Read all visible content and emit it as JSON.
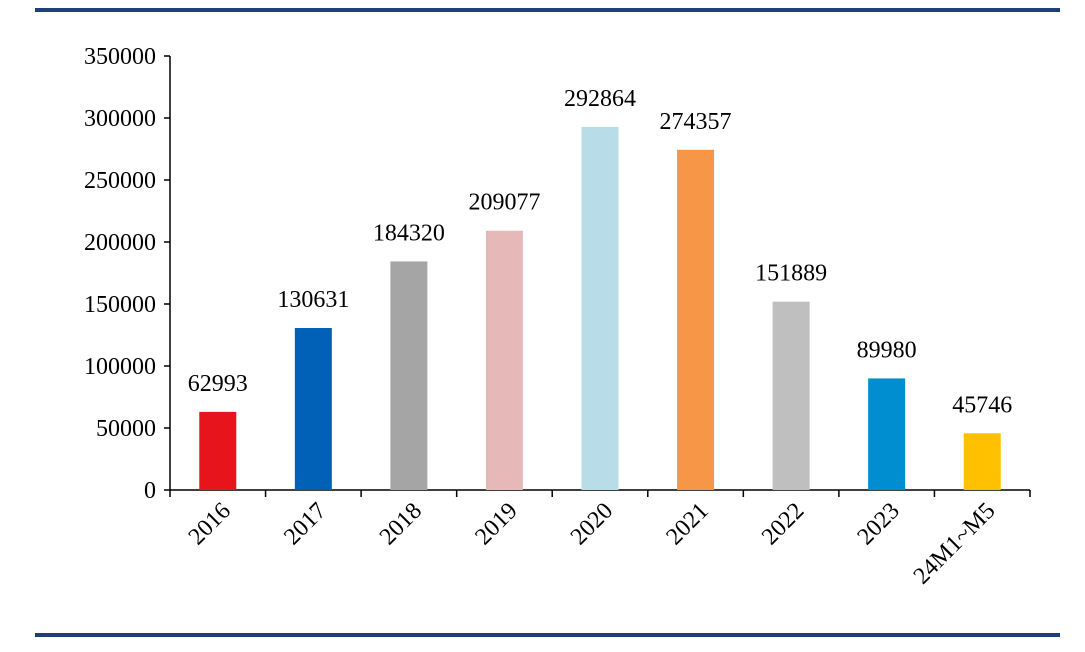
{
  "colors": {
    "rule": "#1f3f7a",
    "axis": "#000000"
  },
  "chart_data": {
    "type": "bar",
    "title": "",
    "xlabel": "",
    "ylabel": "",
    "ylim": [
      0,
      350000
    ],
    "y_ticks": [
      0,
      50000,
      100000,
      150000,
      200000,
      250000,
      300000,
      350000
    ],
    "y_tick_labels": [
      "0",
      "50000",
      "100000",
      "150000",
      "200000",
      "250000",
      "300000",
      "350000"
    ],
    "categories": [
      "2016",
      "2017",
      "2018",
      "2019",
      "2020",
      "2021",
      "2022",
      "2023",
      "24M1~M5"
    ],
    "values": [
      62993,
      130631,
      184320,
      209077,
      292864,
      274357,
      151889,
      89980,
      45746
    ],
    "data_labels": [
      "62993",
      "130631",
      "184320",
      "209077",
      "292864",
      "274357",
      "151889",
      "89980",
      "45746"
    ],
    "bar_colors": [
      "#e8141c",
      "#0061b6",
      "#a5a5a5",
      "#e6b8b8",
      "#b8dde8",
      "#f79646",
      "#bfbfbf",
      "#008ed0",
      "#ffc000"
    ],
    "grid": false,
    "legend": "none"
  }
}
